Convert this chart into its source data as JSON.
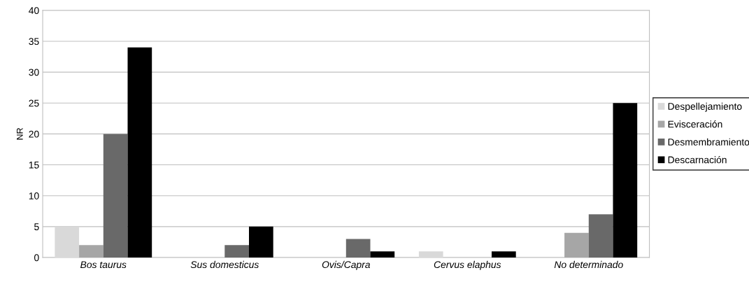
{
  "chart_data": {
    "type": "bar",
    "ylabel": "NR",
    "categories": [
      "Bos taurus",
      "Sus domesticus",
      "Ovis/Capra",
      "Cervus elaphus",
      "No determinado"
    ],
    "series": [
      {
        "name": "Despellejamiento",
        "color": "#d9d9d9",
        "values": [
          5,
          0,
          0,
          1,
          0
        ]
      },
      {
        "name": "Evisceración",
        "color": "#a6a6a6",
        "values": [
          2,
          0,
          0,
          0,
          4
        ]
      },
      {
        "name": "Desmembramiento",
        "color": "#696969",
        "values": [
          20,
          2,
          3,
          0,
          7
        ]
      },
      {
        "name": "Descarnación",
        "color": "#000000",
        "values": [
          34,
          5,
          1,
          1,
          25
        ]
      }
    ],
    "ylim": [
      0,
      40
    ],
    "yticks": [
      0,
      5,
      10,
      15,
      20,
      25,
      30,
      35,
      40
    ],
    "grid": "y",
    "legend": "right"
  }
}
